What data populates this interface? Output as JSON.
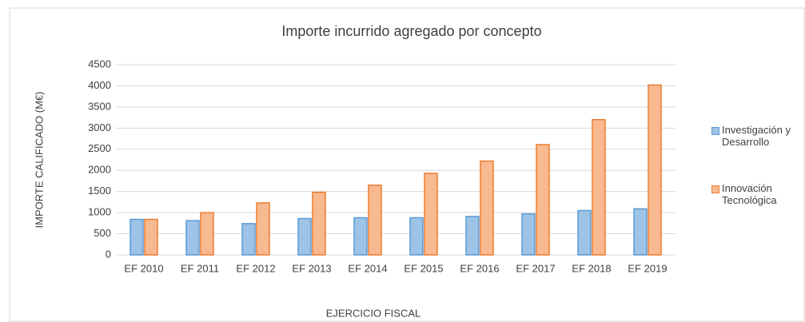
{
  "chart_data": {
    "type": "bar",
    "title": "Importe incurrido agregado por concepto",
    "x_label": "EJERCICIO FISCAL",
    "y_label": "IMPORTE CALIFICADO (M€)",
    "categories": [
      "EF 2010",
      "EF 2011",
      "EF 2012",
      "EF 2013",
      "EF 2014",
      "EF 2015",
      "EF 2016",
      "EF 2017",
      "EF 2018",
      "EF 2019"
    ],
    "series": [
      {
        "name": "Investigación y Desarrollo",
        "color": "#9dc3e6",
        "edge": "#5b9bd5",
        "values": [
          840,
          810,
          740,
          860,
          880,
          880,
          910,
          970,
          1050,
          1090
        ]
      },
      {
        "name": "Innovación Tecnológica",
        "color": "#f8b991",
        "edge": "#ed7d31",
        "values": [
          840,
          1000,
          1230,
          1480,
          1650,
          1930,
          2220,
          2610,
          3200,
          4020
        ]
      }
    ],
    "ylim": [
      0,
      4500
    ],
    "yticks": [
      0,
      500,
      1000,
      1500,
      2000,
      2500,
      3000,
      3500,
      4000,
      4500
    ],
    "grid": true,
    "legend": "right"
  }
}
